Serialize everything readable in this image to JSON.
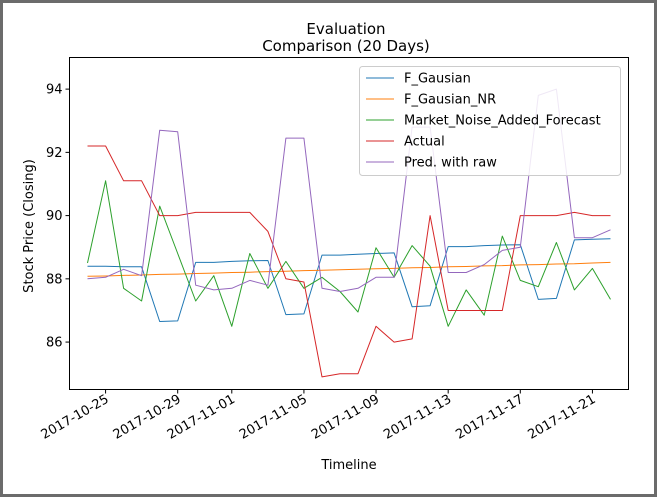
{
  "chart_data": {
    "type": "line",
    "title_lines": [
      "Evaluation",
      "Comparison (20 Days)"
    ],
    "xlabel": "Timeline",
    "ylabel": "Stock Price (Closing)",
    "ylim": [
      84.5,
      95.0
    ],
    "yticks": [
      86,
      88,
      90,
      92,
      94
    ],
    "ytick_labels": [
      "86",
      "88",
      "90",
      "92",
      "94"
    ],
    "xlim": [
      "2017-10-23",
      "2017-11-23"
    ],
    "xticks": [
      "2017-10-25",
      "2017-10-29",
      "2017-11-01",
      "2017-11-05",
      "2017-11-09",
      "2017-11-13",
      "2017-11-17",
      "2017-11-21"
    ],
    "legend_position": "upper-right",
    "dates": [
      "2017-10-24",
      "2017-10-25",
      "2017-10-26",
      "2017-10-27",
      "2017-10-28",
      "2017-10-29",
      "2017-10-30",
      "2017-10-31",
      "2017-11-01",
      "2017-11-02",
      "2017-11-03",
      "2017-11-04",
      "2017-11-05",
      "2017-11-06",
      "2017-11-07",
      "2017-11-08",
      "2017-11-09",
      "2017-11-10",
      "2017-11-11",
      "2017-11-12",
      "2017-11-13",
      "2017-11-14",
      "2017-11-15",
      "2017-11-16",
      "2017-11-17",
      "2017-11-18",
      "2017-11-19",
      "2017-11-20",
      "2017-11-21",
      "2017-11-22"
    ],
    "series": [
      {
        "name": "F_Gausian",
        "color": "#1f77b4",
        "values": [
          88.4,
          88.4,
          88.38,
          88.38,
          86.65,
          86.67,
          88.52,
          88.52,
          88.55,
          88.57,
          88.58,
          86.87,
          86.89,
          88.75,
          88.75,
          88.78,
          88.8,
          88.82,
          87.12,
          87.15,
          89.02,
          89.02,
          89.05,
          89.07,
          89.08,
          87.35,
          87.38,
          89.23,
          89.25,
          89.27
        ]
      },
      {
        "name": "F_Gausian_NR",
        "color": "#ff7f0e",
        "values": [
          88.08,
          88.09,
          88.11,
          88.12,
          88.14,
          88.15,
          88.17,
          88.18,
          88.2,
          88.21,
          88.23,
          88.24,
          88.26,
          88.27,
          88.29,
          88.3,
          88.32,
          88.33,
          88.35,
          88.36,
          88.38,
          88.39,
          88.41,
          88.42,
          88.44,
          88.45,
          88.47,
          88.48,
          88.5,
          88.52
        ]
      },
      {
        "name": "Market_Noise_Added_Forecast",
        "color": "#2ca02c",
        "values": [
          88.5,
          91.1,
          87.7,
          87.3,
          90.3,
          88.8,
          87.3,
          88.1,
          86.5,
          88.8,
          87.7,
          88.55,
          87.7,
          88.05,
          87.6,
          86.95,
          88.98,
          88.05,
          89.05,
          88.4,
          86.5,
          87.65,
          86.85,
          89.35,
          87.95,
          87.75,
          89.15,
          87.65,
          88.33,
          87.35
        ]
      },
      {
        "name": "Actual",
        "color": "#d62728",
        "values": [
          92.2,
          92.2,
          91.1,
          91.1,
          90.0,
          90.0,
          90.1,
          90.1,
          90.1,
          90.1,
          89.5,
          88.0,
          87.9,
          84.9,
          85.0,
          85.0,
          86.5,
          86.0,
          86.1,
          90.0,
          87.0,
          87.0,
          87.0,
          87.0,
          90.0,
          90.0,
          90.0,
          90.1,
          90.0,
          90.0
        ]
      },
      {
        "name": "Pred. with raw",
        "color": "#9467bd",
        "values": [
          88.0,
          88.05,
          88.3,
          88.1,
          92.7,
          92.65,
          87.8,
          87.65,
          87.7,
          87.95,
          87.8,
          92.45,
          92.45,
          87.7,
          87.6,
          87.7,
          88.05,
          88.05,
          92.8,
          92.8,
          88.2,
          88.2,
          88.45,
          88.9,
          89.0,
          93.8,
          94.0,
          89.3,
          89.3,
          89.55
        ]
      }
    ]
  }
}
